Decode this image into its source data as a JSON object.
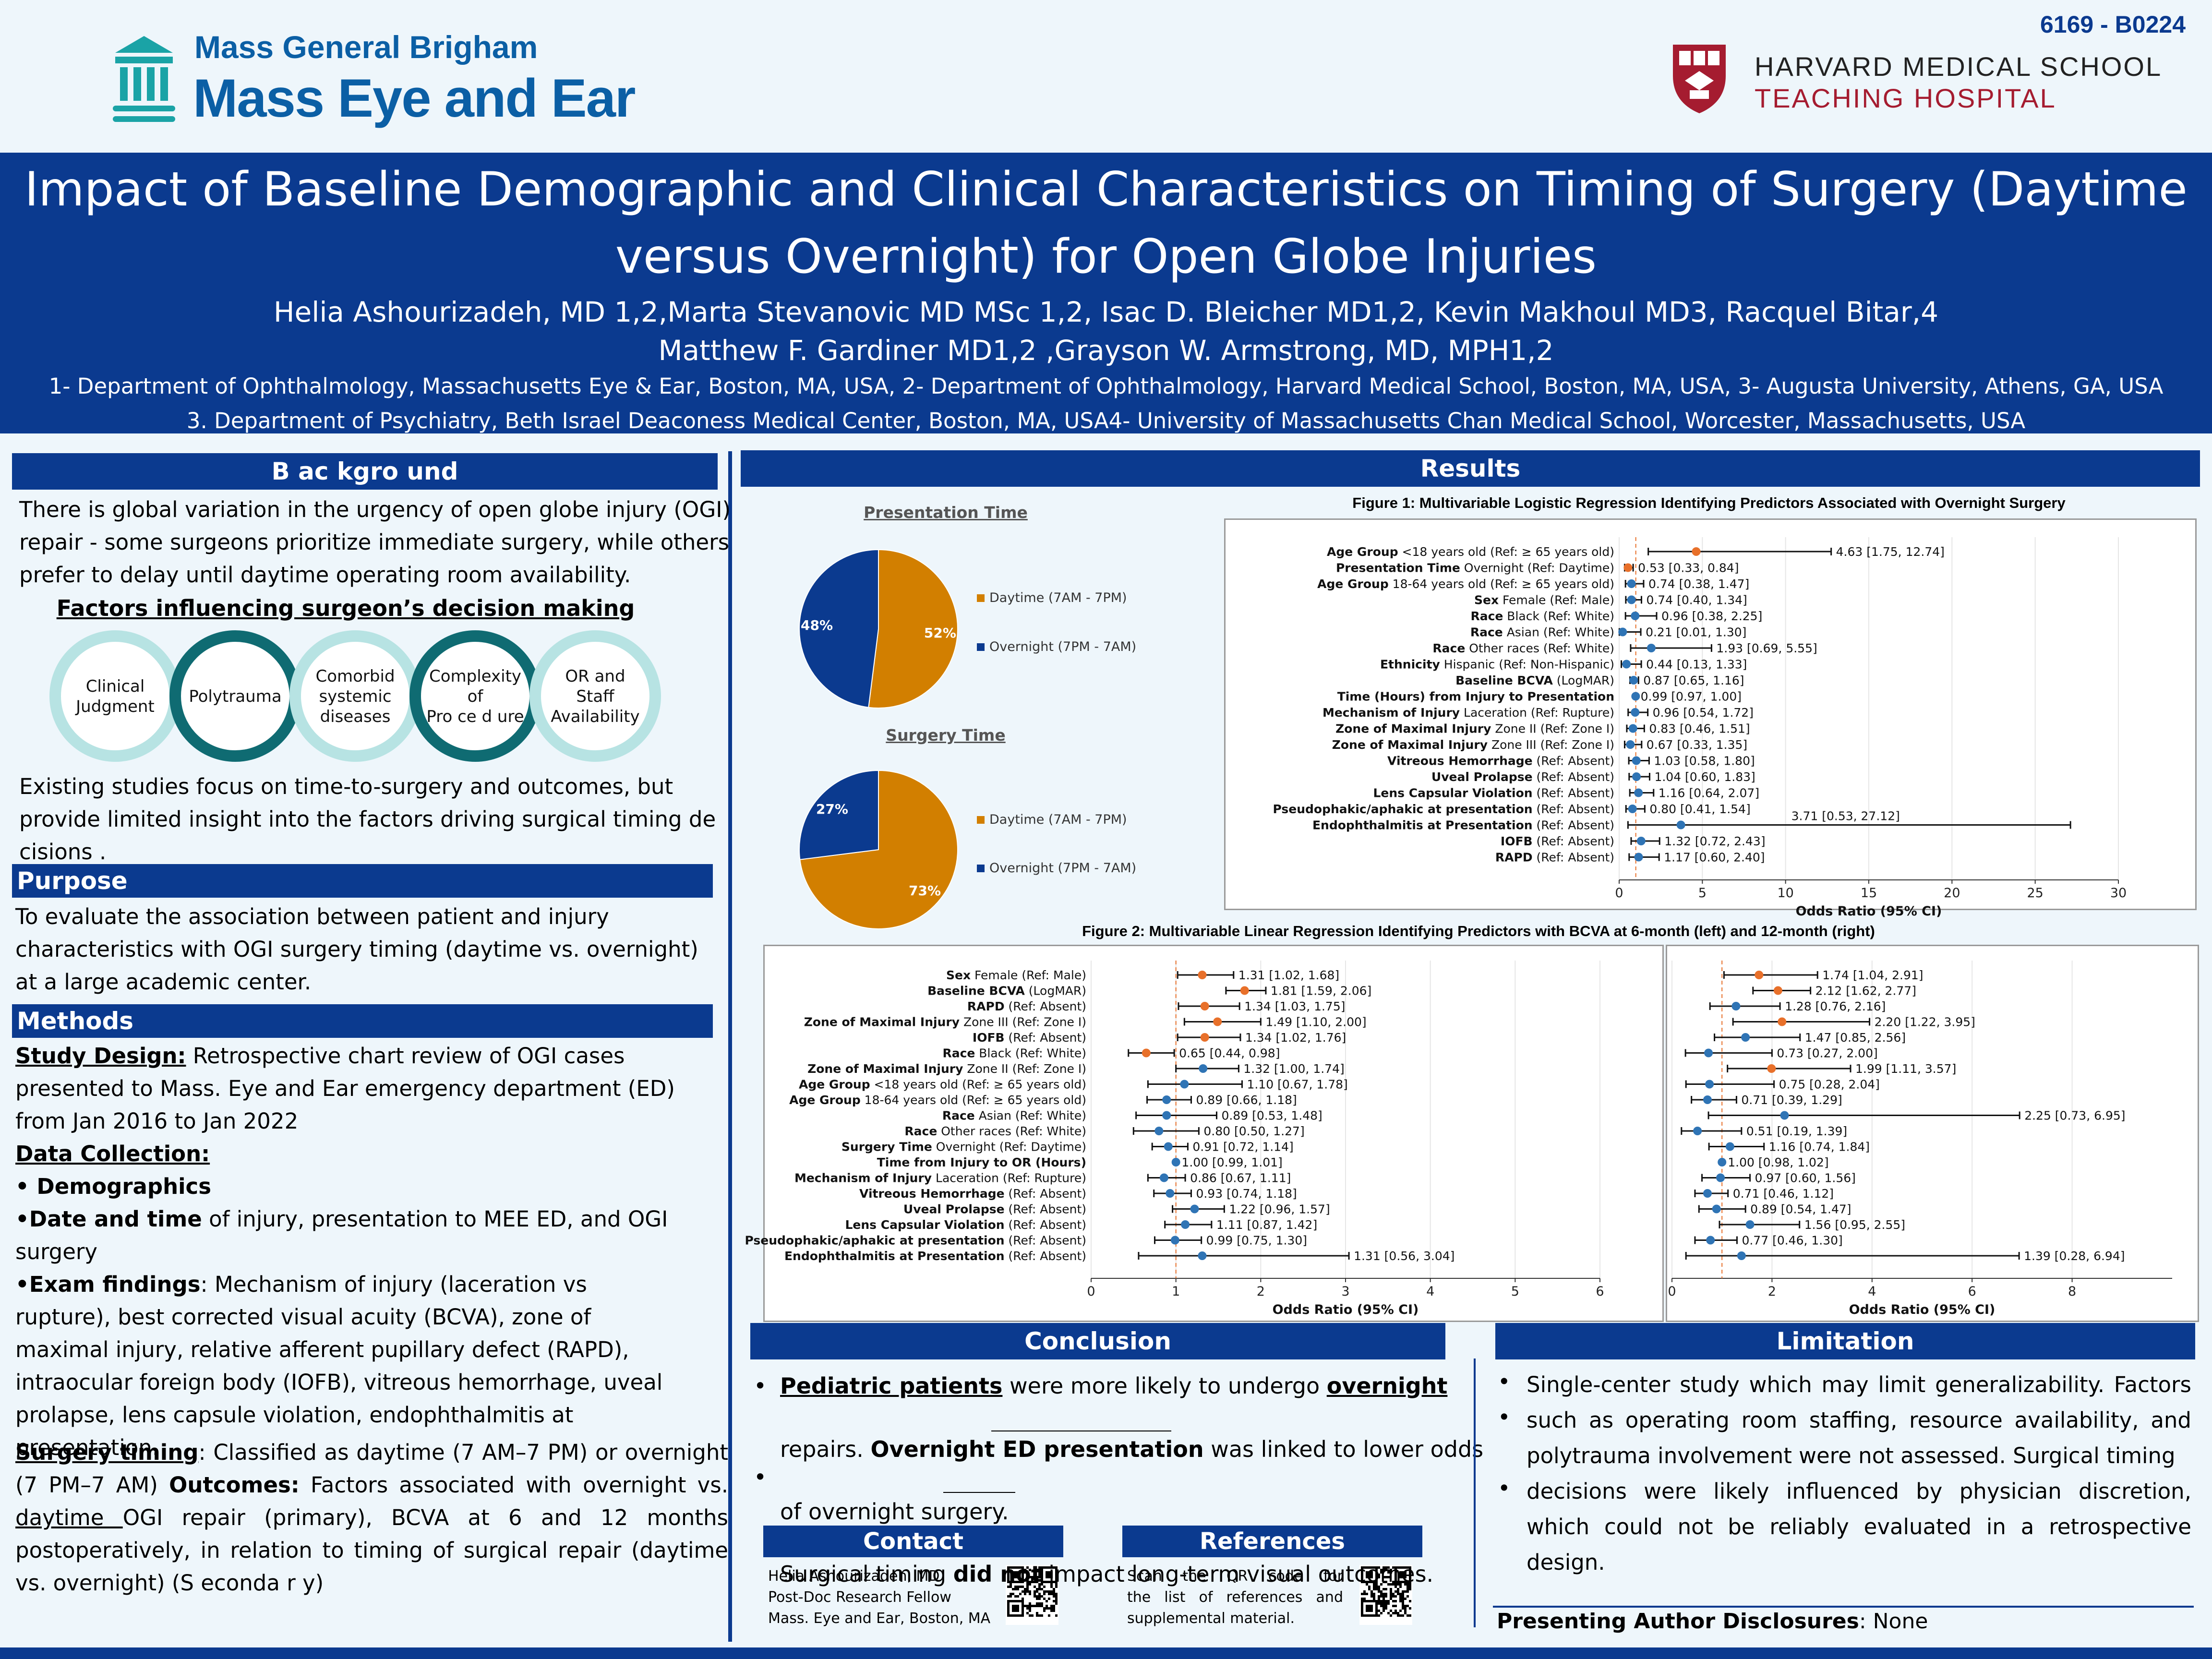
{
  "poster_id": "6169 - B0224",
  "logos": {
    "mgb_line1": "Mass General Brigham",
    "mgb_line2": "Mass Eye and Ear",
    "hms_line1": "HARVARD MEDICAL SCHOOL",
    "hms_line2": "TEACHING HOSPITAL",
    "mgb_icon": "columns-logo-icon",
    "hms_icon": "harvard-shield-icon"
  },
  "header": {
    "title_line1": "Impact of Baseline Demographic and Clinical Characteristics on Timing of Surgery (Daytime",
    "title_line2": "versus Overnight) for Open Globe Injuries",
    "authors_line1": "Helia Ashourizadeh, MD 1,2,Marta Stevanovic MD MSc 1,2, Isac D. Bleicher MD1,2, Kevin Makhoul MD3, Racquel Bitar,4",
    "authors_line2": "Matthew F. Gardiner MD1,2 ,Grayson W. Armstrong, MD, MPH1,2",
    "affil_line1": "1- Department of Ophthalmology, Massachusetts Eye & Ear, Boston, MA, USA, 2- Department of Ophthalmology, Harvard Medical School, Boston, MA, USA, 3- Augusta University, Athens, GA, USA",
    "affil_line2": "3. Department of Psychiatry, Beth Israel Deaconess Medical Center, Boston, MA, USA4- University of Massachusetts Chan Medical School, Worcester, Massachusetts, USA"
  },
  "background": {
    "heading": "B ac kgro und",
    "para1": "There is global variation in the urgency of open globe injury (OGI) repair - some surgeons prioritize immediate surgery, while others prefer to delay until daytime operating room availability.",
    "factors_title": "Factors influencing surgeon’s decision making",
    "circles": [
      {
        "lines": [
          "Clinical",
          "Judgment"
        ],
        "color": "#b7e3e3"
      },
      {
        "lines": [
          "Polytrauma"
        ],
        "color": "#0f6b72"
      },
      {
        "lines": [
          "Comorbid",
          "systemic",
          "diseases"
        ],
        "color": "#b7e3e3"
      },
      {
        "lines": [
          "Complexity",
          "of",
          "Pro ce d ure"
        ],
        "color": "#0f6b72"
      },
      {
        "lines": [
          "OR and",
          "Staff",
          "Availability"
        ],
        "color": "#b7e3e3"
      }
    ],
    "para2": "Existing studies focus on time-to-surgery and outcomes, but provide limited insight into the factors driving surgical timing de cisions ."
  },
  "purpose": {
    "heading": "Purpose",
    "text": "To evaluate the association between patient and injury characteristics with OGI surgery timing (daytime vs. overnight) at a large academic center."
  },
  "methods": {
    "heading": "Methods",
    "study_design_label": "Study Design:",
    "study_design_text": " Retrospective chart review of OGI cases presented to Mass. Eye and Ear emergency department (ED) from Jan 2016 to Jan 2022",
    "data_collection_label": "Data Collection:",
    "demographics": "• Demographics",
    "date_time_bold": "•Date and time",
    "date_time_text": " of injury, presentation to MEE ED, and OGI surgery",
    "exam_bold": "•Exam findings",
    "exam_text": ": Mechanism of injury (laceration vs rupture), best corrected visual acuity (BCVA), zone of maximal injury, relative afferent pupillary defect (RAPD), intraocular foreign body (IOFB), vitreous hemorrhage, uveal prolapse, lens capsule violation, endophthalmitis at presentation.",
    "timing_label": "Surgery timing",
    "timing_text": ": Classified as daytime (7 AM–7 PM) or overnight (7 PM–7 AM) ",
    "outcomes_label": "Outcomes:",
    "outcomes_text1": " Factors associated with overnight vs. ",
    "outcomes_daytime": "daytime ",
    "outcomes_text2": " OGI repair (primary), BCVA at 6 and 12 months postoperatively, in relation to timing of surgical repair (daytime vs. overnight) (S econda r y)"
  },
  "results": {
    "heading": "Results",
    "pie1": {
      "title": "Presentation Time",
      "legend": [
        "Daytime (7AM - 7PM)",
        "Overnight (7PM - 7AM)"
      ],
      "labels": [
        "52%",
        "48%"
      ]
    },
    "pie2": {
      "title": "Surgery Time",
      "legend": [
        "Daytime (7AM - 7PM)",
        "Overnight (7PM - 7AM)"
      ],
      "labels": [
        "73%",
        "27%"
      ]
    },
    "fig1_title": "Figure 1: Multivariable Logistic Regression Identifying Predictors Associated with Overnight Surgery",
    "fig2_title": "Figure 2: Multivariable Linear Regression Identifying Predictors with BCVA at 6-month (left) and 12-month (right)"
  },
  "chart_data": [
    {
      "type": "pie",
      "title": "Presentation Time",
      "categories": [
        "Daytime (7AM - 7PM)",
        "Overnight (7PM - 7AM)"
      ],
      "values": [
        52,
        48
      ],
      "colors": [
        "#d27f00",
        "#0b3a8f"
      ]
    },
    {
      "type": "pie",
      "title": "Surgery Time",
      "categories": [
        "Daytime (7AM - 7PM)",
        "Overnight (7PM - 7AM)"
      ],
      "values": [
        73,
        27
      ],
      "colors": [
        "#d27f00",
        "#0b3a8f"
      ]
    },
    {
      "type": "scatter",
      "subtype": "forest",
      "title": "Figure 1: Multivariable Logistic Regression Identifying Predictors Associated with Overnight Surgery",
      "xlabel": "Odds Ratio (95% CI)",
      "xlim": [
        0,
        30
      ],
      "xticks": [
        0,
        5,
        10,
        15,
        20,
        25,
        30
      ],
      "reference_line": 1,
      "rows": [
        {
          "bold": "Age Group",
          "rest": " <18 years old  (Ref: ≥ 65 years old)",
          "or": 4.63,
          "lo": 1.75,
          "hi": 12.74,
          "text": "4.63 [1.75, 12.74]",
          "sig": true
        },
        {
          "bold": "Presentation Time",
          "rest": " Overnight (Ref: Daytime)",
          "or": 0.53,
          "lo": 0.33,
          "hi": 0.84,
          "text": "0.53 [0.33, 0.84]",
          "sig": true
        },
        {
          "bold": "Age Group",
          "rest": " 18-64 years old (Ref: ≥ 65 years old)",
          "or": 0.74,
          "lo": 0.38,
          "hi": 1.47,
          "text": "0.74 [0.38, 1.47]",
          "sig": false
        },
        {
          "bold": "Sex",
          "rest": " Female (Ref: Male)",
          "or": 0.74,
          "lo": 0.4,
          "hi": 1.34,
          "text": "0.74 [0.40, 1.34]",
          "sig": false
        },
        {
          "bold": "Race",
          "rest": " Black (Ref: White)",
          "or": 0.96,
          "lo": 0.38,
          "hi": 2.25,
          "text": "0.96 [0.38, 2.25]",
          "sig": false
        },
        {
          "bold": "Race",
          "rest": " Asian (Ref: White)",
          "or": 0.21,
          "lo": 0.01,
          "hi": 1.3,
          "text": "0.21 [0.01, 1.30]",
          "sig": false
        },
        {
          "bold": "Race",
          "rest": " Other races (Ref: White)",
          "or": 1.93,
          "lo": 0.69,
          "hi": 5.55,
          "text": "1.93 [0.69, 5.55]",
          "sig": false
        },
        {
          "bold": "Ethnicity",
          "rest": " Hispanic (Ref: Non-Hispanic)",
          "or": 0.44,
          "lo": 0.13,
          "hi": 1.33,
          "text": "0.44 [0.13, 1.33]",
          "sig": false
        },
        {
          "bold": "Baseline BCVA",
          "rest": " (LogMAR)",
          "or": 0.87,
          "lo": 0.65,
          "hi": 1.16,
          "text": "0.87 [0.65, 1.16]",
          "sig": false
        },
        {
          "bold": "Time (Hours) from Injury to Presentation",
          "rest": "",
          "or": 0.99,
          "lo": 0.97,
          "hi": 1.0,
          "text": "0.99 [0.97, 1.00]",
          "sig": false
        },
        {
          "bold": "Mechanism of Injury",
          "rest": " Laceration (Ref: Rupture)",
          "or": 0.96,
          "lo": 0.54,
          "hi": 1.72,
          "text": "0.96 [0.54, 1.72]",
          "sig": false
        },
        {
          "bold": "Zone of Maximal Injury",
          "rest": " Zone II (Ref: Zone I)",
          "or": 0.83,
          "lo": 0.46,
          "hi": 1.51,
          "text": "0.83 [0.46, 1.51]",
          "sig": false
        },
        {
          "bold": "Zone of Maximal Injury",
          "rest": " Zone III (Ref: Zone I)",
          "or": 0.67,
          "lo": 0.33,
          "hi": 1.35,
          "text": "0.67 [0.33, 1.35]",
          "sig": false
        },
        {
          "bold": "Vitreous Hemorrhage",
          "rest": " (Ref: Absent)",
          "or": 1.03,
          "lo": 0.58,
          "hi": 1.8,
          "text": "1.03 [0.58, 1.80]",
          "sig": false
        },
        {
          "bold": "Uveal Prolapse",
          "rest": " (Ref: Absent)",
          "or": 1.04,
          "lo": 0.6,
          "hi": 1.83,
          "text": "1.04 [0.60, 1.83]",
          "sig": false
        },
        {
          "bold": "Lens Capsular Violation",
          "rest": " (Ref: Absent)",
          "or": 1.16,
          "lo": 0.64,
          "hi": 2.07,
          "text": "1.16 [0.64, 2.07]",
          "sig": false
        },
        {
          "bold": "Pseudophakic/aphakic at presentation",
          "rest": " (Ref: Absent)",
          "or": 0.8,
          "lo": 0.41,
          "hi": 1.54,
          "text": "0.80 [0.41, 1.54]",
          "sig": false
        },
        {
          "bold": "Endophthalmitis at Presentation",
          "rest": " (Ref: Absent)",
          "or": 3.71,
          "lo": 0.53,
          "hi": 27.12,
          "text": "3.71 [0.53, 27.12]",
          "sig": false
        },
        {
          "bold": "IOFB",
          "rest": " (Ref: Absent)",
          "or": 1.32,
          "lo": 0.72,
          "hi": 2.43,
          "text": "1.32 [0.72, 2.43]",
          "sig": false
        },
        {
          "bold": "RAPD",
          "rest": " (Ref: Absent)",
          "or": 1.17,
          "lo": 0.6,
          "hi": 2.4,
          "text": "1.17 [0.60, 2.40]",
          "sig": false
        }
      ]
    },
    {
      "type": "scatter",
      "subtype": "forest",
      "title": "Figure 2 (left): BCVA at 6-month",
      "xlabel": "Odds Ratio (95% CI)",
      "xlim": [
        0,
        6
      ],
      "xticks": [
        0,
        1,
        2,
        3,
        4,
        5,
        6
      ],
      "reference_line": 1,
      "rows": [
        {
          "bold": "Sex",
          "rest": " Female (Ref: Male)",
          "or": 1.31,
          "lo": 1.02,
          "hi": 1.68,
          "text": "1.31 [1.02, 1.68]",
          "sig": true
        },
        {
          "bold": "Baseline BCVA",
          "rest": " (LogMAR)",
          "or": 1.81,
          "lo": 1.59,
          "hi": 2.06,
          "text": "1.81 [1.59, 2.06]",
          "sig": true
        },
        {
          "bold": "RAPD",
          "rest": "  (Ref: Absent)",
          "or": 1.34,
          "lo": 1.03,
          "hi": 1.75,
          "text": "1.34 [1.03, 1.75]",
          "sig": true
        },
        {
          "bold": "Zone of Maximal Injury",
          "rest": " Zone III (Ref: Zone I)",
          "or": 1.49,
          "lo": 1.1,
          "hi": 2.0,
          "text": "1.49 [1.10, 2.00]",
          "sig": true
        },
        {
          "bold": "IOFB",
          "rest": " (Ref: Absent)",
          "or": 1.34,
          "lo": 1.02,
          "hi": 1.76,
          "text": "1.34 [1.02, 1.76]",
          "sig": true
        },
        {
          "bold": "Race",
          "rest": " Black (Ref: White)",
          "or": 0.65,
          "lo": 0.44,
          "hi": 0.98,
          "text": "0.65 [0.44, 0.98]",
          "sig": true
        },
        {
          "bold": "Zone of Maximal Injury",
          "rest": " Zone II (Ref: Zone I)",
          "or": 1.32,
          "lo": 1.0,
          "hi": 1.74,
          "text": "1.32 [1.00, 1.74]",
          "sig": false
        },
        {
          "bold": "Age Group",
          "rest": " <18 years old (Ref: ≥ 65 years old)",
          "or": 1.1,
          "lo": 0.67,
          "hi": 1.78,
          "text": "1.10 [0.67, 1.78]",
          "sig": false
        },
        {
          "bold": "Age Group",
          "rest": " 18-64 years old (Ref: ≥ 65 years old)",
          "or": 0.89,
          "lo": 0.66,
          "hi": 1.18,
          "text": "0.89 [0.66, 1.18]",
          "sig": false
        },
        {
          "bold": "Race",
          "rest": " Asian (Ref: White)",
          "or": 0.89,
          "lo": 0.53,
          "hi": 1.48,
          "text": "0.89 [0.53, 1.48]",
          "sig": false
        },
        {
          "bold": "Race",
          "rest": " Other races (Ref: White)",
          "or": 0.8,
          "lo": 0.5,
          "hi": 1.27,
          "text": "0.80 [0.50, 1.27]",
          "sig": false
        },
        {
          "bold": "Surgery Time",
          "rest": " Overnight (Ref: Daytime)",
          "or": 0.91,
          "lo": 0.72,
          "hi": 1.14,
          "text": "0.91 [0.72, 1.14]",
          "sig": false
        },
        {
          "bold": "Time from Injury to OR (Hours)",
          "rest": "",
          "or": 1.0,
          "lo": 0.99,
          "hi": 1.01,
          "text": "1.00 [0.99, 1.01]",
          "sig": false
        },
        {
          "bold": "Mechanism of Injury",
          "rest": " Laceration (Ref: Rupture)",
          "or": 0.86,
          "lo": 0.67,
          "hi": 1.11,
          "text": "0.86 [0.67, 1.11]",
          "sig": false
        },
        {
          "bold": "Vitreous Hemorrhage",
          "rest": " (Ref: Absent)",
          "or": 0.93,
          "lo": 0.74,
          "hi": 1.18,
          "text": "0.93 [0.74, 1.18]",
          "sig": false
        },
        {
          "bold": "Uveal Prolapse",
          "rest": " (Ref: Absent)",
          "or": 1.22,
          "lo": 0.96,
          "hi": 1.57,
          "text": "1.22 [0.96, 1.57]",
          "sig": false
        },
        {
          "bold": "Lens Capsular Violation",
          "rest": " (Ref: Absent)",
          "or": 1.11,
          "lo": 0.87,
          "hi": 1.42,
          "text": "1.11 [0.87, 1.42]",
          "sig": false
        },
        {
          "bold": "Pseudophakic/aphakic at presentation",
          "rest": " (Ref: Absent)",
          "or": 0.99,
          "lo": 0.75,
          "hi": 1.3,
          "text": "0.99 [0.75, 1.30]",
          "sig": false
        },
        {
          "bold": "Endophthalmitis at Presentation",
          "rest": " (Ref: Absent)",
          "or": 1.31,
          "lo": 0.56,
          "hi": 3.04,
          "text": "1.31 [0.56, 3.04]",
          "sig": false
        }
      ]
    },
    {
      "type": "scatter",
      "subtype": "forest",
      "title": "Figure 2 (right): BCVA at 12-month",
      "xlabel": "Odds Ratio (95% CI)",
      "xlim": [
        0,
        10
      ],
      "xticks": [
        0,
        2,
        4,
        6,
        8
      ],
      "reference_line": 1,
      "rows": [
        {
          "or": 1.74,
          "lo": 1.04,
          "hi": 2.91,
          "text": "1.74 [1.04, 2.91]",
          "sig": true
        },
        {
          "or": 2.12,
          "lo": 1.62,
          "hi": 2.77,
          "text": "2.12 [1.62, 2.77]",
          "sig": true
        },
        {
          "or": 1.28,
          "lo": 0.76,
          "hi": 2.16,
          "text": "1.28 [0.76, 2.16]",
          "sig": false
        },
        {
          "or": 2.2,
          "lo": 1.22,
          "hi": 3.95,
          "text": "2.20 [1.22, 3.95]",
          "sig": true
        },
        {
          "or": 1.47,
          "lo": 0.85,
          "hi": 2.56,
          "text": "1.47 [0.85, 2.56]",
          "sig": false
        },
        {
          "or": 0.73,
          "lo": 0.27,
          "hi": 2.0,
          "text": "0.73 [0.27, 2.00]",
          "sig": false
        },
        {
          "or": 1.99,
          "lo": 1.11,
          "hi": 3.57,
          "text": "1.99 [1.11, 3.57]",
          "sig": true
        },
        {
          "or": 0.75,
          "lo": 0.28,
          "hi": 2.04,
          "text": "0.75 [0.28, 2.04]",
          "sig": false
        },
        {
          "or": 0.71,
          "lo": 0.39,
          "hi": 1.29,
          "text": "0.71 [0.39, 1.29]",
          "sig": false
        },
        {
          "or": 2.25,
          "lo": 0.73,
          "hi": 6.95,
          "text": "2.25 [0.73, 6.95]",
          "sig": false
        },
        {
          "or": 0.51,
          "lo": 0.19,
          "hi": 1.39,
          "text": "0.51 [0.19, 1.39]",
          "sig": false
        },
        {
          "or": 1.16,
          "lo": 0.74,
          "hi": 1.84,
          "text": "1.16 [0.74, 1.84]",
          "sig": false
        },
        {
          "or": 1.0,
          "lo": 0.98,
          "hi": 1.02,
          "text": "1.00 [0.98, 1.02]",
          "sig": false
        },
        {
          "or": 0.97,
          "lo": 0.6,
          "hi": 1.56,
          "text": "0.97 [0.60, 1.56]",
          "sig": false
        },
        {
          "or": 0.71,
          "lo": 0.46,
          "hi": 1.12,
          "text": "0.71 [0.46, 1.12]",
          "sig": false
        },
        {
          "or": 0.89,
          "lo": 0.54,
          "hi": 1.47,
          "text": "0.89 [0.54, 1.47]",
          "sig": false
        },
        {
          "or": 1.56,
          "lo": 0.95,
          "hi": 2.55,
          "text": "1.56 [0.95, 2.55]",
          "sig": false
        },
        {
          "or": 0.77,
          "lo": 0.46,
          "hi": 1.3,
          "text": "0.77 [0.46, 1.30]",
          "sig": false
        },
        {
          "or": 1.39,
          "lo": 0.28,
          "hi": 6.94,
          "text": "1.39 [0.28, 6.94]",
          "sig": false
        }
      ]
    }
  ],
  "conclusion": {
    "heading": "Conclusion",
    "b1_bold1": "Pediatric patients",
    "b1_text1": " were more likely to undergo ",
    "b1_bold2": "overnight",
    "b1_text2": "repairs. ",
    "b1_bold3": "Overnight ED presentation",
    "b1_text3": " was linked to lower odds",
    "b1_text4": "of overnight surgery.",
    "b2_text1": "Surgical timing ",
    "b2_bold": "did not",
    "b2_text2": " impact long-term visual outcomes."
  },
  "limitation": {
    "heading": "Limitation",
    "items": [
      "Single-center study which may limit generalizability. Factors",
      "such as operating room staffing, resource availability, and polytrauma involvement were not assessed. Surgical timing",
      "decisions were likely influenced by physician discretion, which could not be reliably evaluated in a retrospective design."
    ],
    "disclosure_label": "Presenting Author Disclosures",
    "disclosure_value": ": None"
  },
  "contact": {
    "heading": "Contact",
    "lines": [
      "Helia Ashourizadeh, MD",
      "Post-Doc Research Fellow",
      "Mass. Eye and Ear, Boston, MA"
    ],
    "qr_icon": "qr-code-icon"
  },
  "references": {
    "heading": "References",
    "lines": [
      "Scan the QR code for",
      "the list of references and",
      "supplemental material."
    ],
    "qr_icon": "qr-code-icon"
  },
  "colors": {
    "navy": "#0b3a8f",
    "orange": "#d27f00",
    "teal_dark": "#0f6b72",
    "teal_light": "#b7e3e3",
    "crimson": "#a51c30",
    "point_orange": "#e8702a",
    "point_blue": "#2f74b5"
  }
}
